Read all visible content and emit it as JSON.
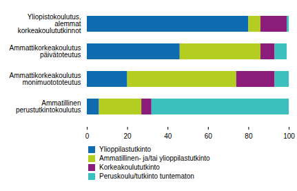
{
  "chart_data": {
    "type": "bar",
    "orientation": "horizontal",
    "stacked": true,
    "categories": [
      "Yliopistokoulutus,\nalemmat\nkorkeakoulututkinnot",
      "Ammattikorkeakoulutus\npäivätoteutus",
      "Ammattikorkeakoulutus\nmonimuotototeutus",
      "Ammatillinen\nperustutkintokoulutus"
    ],
    "series": [
      {
        "name": "Ylioppilastutkinto",
        "color": "#0f6cb0",
        "values": [
          80,
          46,
          20,
          6
        ]
      },
      {
        "name": "Ammatillinen- ja/tai ylioppilastutkinto",
        "color": "#b3cd21",
        "values": [
          6,
          40,
          54,
          21
        ]
      },
      {
        "name": "Korkeakoulututkinto",
        "color": "#8c1c7a",
        "values": [
          13,
          7,
          19,
          5
        ]
      },
      {
        "name": "Peruskoulu/tutkinto tuntematon",
        "color": "#3cc0bd",
        "values": [
          1,
          6,
          7,
          68
        ]
      }
    ],
    "xlim": [
      0,
      100
    ],
    "xticks": [
      0,
      20,
      40,
      60,
      80,
      100
    ],
    "grid": false,
    "legend": "bottom"
  }
}
